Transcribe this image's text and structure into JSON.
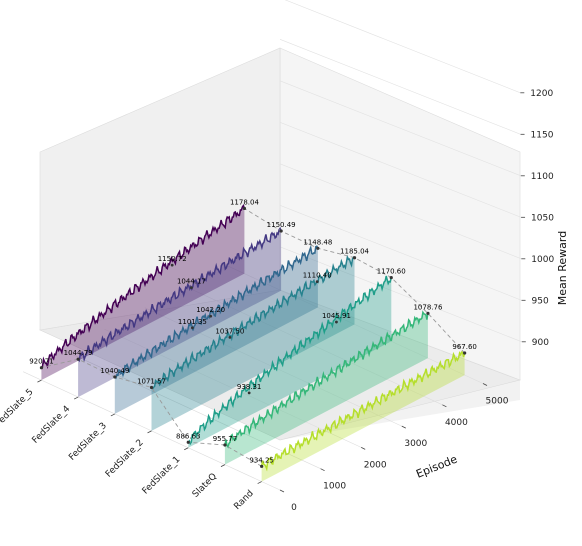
{
  "chart_data": {
    "type": "line",
    "projection": "3d-waterfall",
    "title": "",
    "xlabel": "Episode",
    "zlabel": "Mean Reward",
    "xlim": [
      0,
      5000
    ],
    "zlim": [
      860,
      1230
    ],
    "x_ticks": [
      "0",
      "1000",
      "2000",
      "3000",
      "4000",
      "5000"
    ],
    "z_ticks": [
      "900",
      "950",
      "1000",
      "1050",
      "1100",
      "1150",
      "1200"
    ],
    "categories": [
      "Rand",
      "SlateQ",
      "FedSlate_1",
      "FedSlate_2",
      "FedSlate_3",
      "FedSlate_4",
      "FedSlate_5"
    ],
    "grid": true,
    "legend": "none",
    "series": [
      {
        "name": "Rand",
        "color": "#b5de2b",
        "x": [
          0,
          5000
        ],
        "start_value": 934.25,
        "end_value": 967.6,
        "start_label": "934.25",
        "end_label": "967.60"
      },
      {
        "name": "SlateQ",
        "color": "#35b779",
        "x": [
          0,
          5000
        ],
        "start_value": 955.77,
        "end_value": 1078.76,
        "start_label": "955.77",
        "end_label": "1078.76"
      },
      {
        "name": "FedSlate_1",
        "color": "#1f9e89",
        "x": [
          0,
          5000
        ],
        "start_value": 886.63,
        "end_value": 1170.6,
        "start_label": "886.63",
        "end_label": "1170.60"
      },
      {
        "name": "FedSlate_2",
        "color": "#26828e",
        "x": [
          0,
          5000
        ],
        "start_value": 1071.57,
        "end_value": 1185.04,
        "start_label": "1071.57",
        "end_label": "1185.04"
      },
      {
        "name": "FedSlate_3",
        "color": "#31688e",
        "x": [
          0,
          5000
        ],
        "start_value": 1040.49,
        "end_value": 1148.48,
        "start_label": "1040.49",
        "end_label": "1148.48"
      },
      {
        "name": "FedSlate_4",
        "color": "#443983",
        "x": [
          0,
          5000
        ],
        "start_value": 1044.79,
        "end_value": 1150.49,
        "start_label": "1044.79",
        "end_label": "1150.49"
      },
      {
        "name": "FedSlate_5",
        "color": "#440154",
        "x": [
          0,
          5000
        ],
        "start_value": 920.71,
        "end_value": 1178.04,
        "start_label": "920.71",
        "end_label": "1178.04"
      }
    ],
    "extra_annotations": [
      "938.31",
      "1037.50",
      "1042.20",
      "1044.17",
      "1150.72",
      "1045.91",
      "1110.40",
      "1101.35"
    ]
  }
}
